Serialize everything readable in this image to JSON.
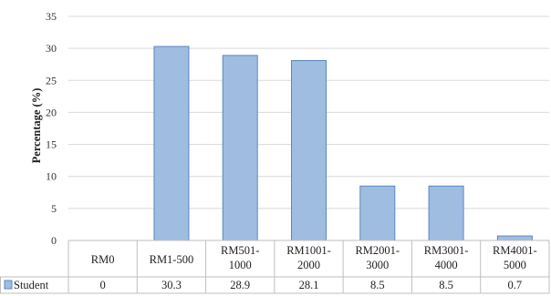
{
  "chart_data": {
    "type": "bar",
    "ylabel": "Percentage (%)",
    "ylim": [
      0,
      35
    ],
    "yticks": [
      0,
      5,
      10,
      15,
      20,
      25,
      30,
      35
    ],
    "grid": true,
    "categories": [
      [
        "RM0"
      ],
      [
        "RM1-500"
      ],
      [
        "RM501-",
        "1000"
      ],
      [
        "RM1001-",
        "2000"
      ],
      [
        "RM2001-",
        "3000"
      ],
      [
        "RM3001-",
        "4000"
      ],
      [
        "RM4001-",
        "5000"
      ]
    ],
    "series": [
      {
        "name": "Student",
        "values": [
          0,
          30.3,
          28.9,
          28.1,
          8.5,
          8.5,
          0.7
        ],
        "labels": [
          "0",
          "30.3",
          "28.9",
          "28.1",
          "8.5",
          "8.5",
          "0.7"
        ]
      }
    ],
    "colors": {
      "bar_fill": "#9fbde0",
      "bar_stroke": "#5b87bd",
      "grid": "#d9d9d9",
      "table_border": "#bfbfbf"
    },
    "legend": "data-table"
  }
}
